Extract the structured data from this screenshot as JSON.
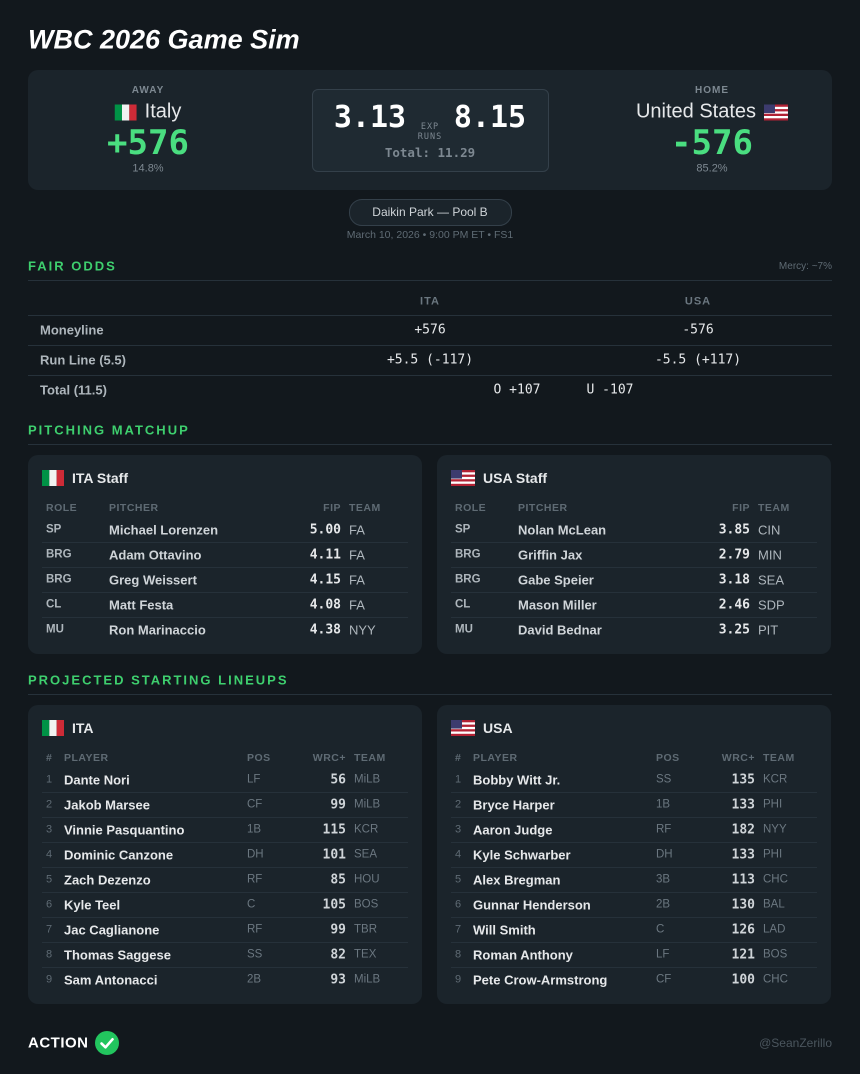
{
  "header": {
    "title": "WBC 2026 Game Sim"
  },
  "matchup": {
    "away": {
      "label": "AWAY",
      "team": "Italy",
      "odds": "+576",
      "prob": "14.8%"
    },
    "home": {
      "label": "HOME",
      "team": "United States",
      "odds": "-576",
      "prob": "85.2%"
    },
    "away_runs": "3.13",
    "home_runs": "8.15",
    "exp_label": [
      "EXP",
      "RUNS"
    ],
    "total": "Total: 11.29"
  },
  "venue": "Daikin Park — Pool B",
  "date": "March 10, 2026 • 9:00 PM ET • FS1",
  "fair_odds": {
    "title": "FAIR ODDS",
    "note": "Mercy: ~7%",
    "columns": [
      "ITA",
      "USA"
    ],
    "rows": [
      {
        "label": "Moneyline",
        "values": [
          "+576",
          "-576"
        ]
      },
      {
        "label": "Run Line (5.5)",
        "values": [
          "+5.5 (-117)",
          "-5.5 (+117)"
        ]
      }
    ],
    "total": {
      "label": "Total (11.5)",
      "over": "O +107",
      "under": "U -107"
    }
  },
  "pitching": {
    "title": "PITCHING MATCHUP",
    "columns": [
      "ROLE",
      "PITCHER",
      "FIP",
      "TEAM"
    ],
    "staffs": [
      {
        "name": "ITA Staff",
        "rows": [
          [
            "SP",
            "Michael Lorenzen",
            "5.00",
            "FA"
          ],
          [
            "BRG",
            "Adam Ottavino",
            "4.11",
            "FA"
          ],
          [
            "BRG",
            "Greg Weissert",
            "4.15",
            "FA"
          ],
          [
            "CL",
            "Matt Festa",
            "4.08",
            "FA"
          ],
          [
            "MU",
            "Ron Marinaccio",
            "4.38",
            "NYY"
          ]
        ]
      },
      {
        "name": "USA Staff",
        "rows": [
          [
            "SP",
            "Nolan McLean",
            "3.85",
            "CIN"
          ],
          [
            "BRG",
            "Griffin Jax",
            "2.79",
            "MIN"
          ],
          [
            "BRG",
            "Gabe Speier",
            "3.18",
            "SEA"
          ],
          [
            "CL",
            "Mason Miller",
            "2.46",
            "SDP"
          ],
          [
            "MU",
            "David Bednar",
            "3.25",
            "PIT"
          ]
        ]
      }
    ]
  },
  "lineups": {
    "title": "PROJECTED STARTING LINEUPS",
    "columns": [
      "#",
      "PLAYER",
      "POS",
      "WRC+",
      "TEAM"
    ],
    "teams": [
      {
        "name": "ITA",
        "rows": [
          [
            "1",
            "Dante Nori",
            "LF",
            "56",
            "MiLB"
          ],
          [
            "2",
            "Jakob Marsee",
            "CF",
            "99",
            "MiLB"
          ],
          [
            "3",
            "Vinnie Pasquantino",
            "1B",
            "115",
            "KCR"
          ],
          [
            "4",
            "Dominic Canzone",
            "DH",
            "101",
            "SEA"
          ],
          [
            "5",
            "Zach Dezenzo",
            "RF",
            "85",
            "HOU"
          ],
          [
            "6",
            "Kyle Teel",
            "C",
            "105",
            "BOS"
          ],
          [
            "7",
            "Jac Caglianone",
            "RF",
            "99",
            "TBR"
          ],
          [
            "8",
            "Thomas Saggese",
            "SS",
            "82",
            "TEX"
          ],
          [
            "9",
            "Sam Antonacci",
            "2B",
            "93",
            "MiLB"
          ]
        ]
      },
      {
        "name": "USA",
        "rows": [
          [
            "1",
            "Bobby Witt Jr.",
            "SS",
            "135",
            "KCR"
          ],
          [
            "2",
            "Bryce Harper",
            "1B",
            "133",
            "PHI"
          ],
          [
            "3",
            "Aaron Judge",
            "RF",
            "182",
            "NYY"
          ],
          [
            "4",
            "Kyle Schwarber",
            "DH",
            "133",
            "PHI"
          ],
          [
            "5",
            "Alex Bregman",
            "3B",
            "113",
            "CHC"
          ],
          [
            "6",
            "Gunnar Henderson",
            "2B",
            "130",
            "BAL"
          ],
          [
            "7",
            "Will Smith",
            "C",
            "126",
            "LAD"
          ],
          [
            "8",
            "Roman Anthony",
            "LF",
            "121",
            "BOS"
          ],
          [
            "9",
            "Pete Crow-Armstrong",
            "CF",
            "100",
            "CHC"
          ]
        ]
      }
    ]
  },
  "footer": {
    "brand": "ACTION",
    "handle": "@SeanZerillo"
  }
}
